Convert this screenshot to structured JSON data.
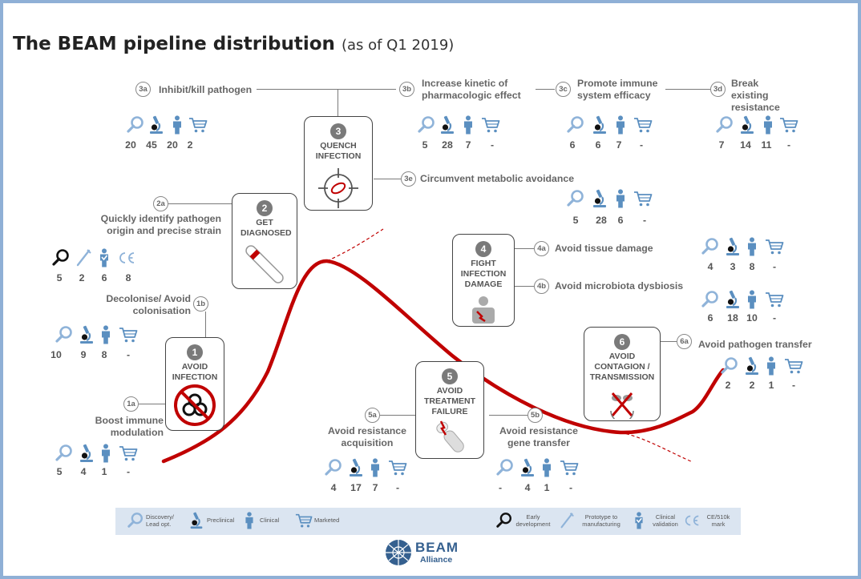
{
  "title": "The BEAM pipeline distribution",
  "subtitle": "(as of Q1 2019)",
  "colors": {
    "icon_blue": "#5b8fc0",
    "curve_red": "#c00000",
    "box_border": "#444444",
    "legend_bg": "#dbe5f1",
    "frame": "#8fb0d6"
  },
  "stages": [
    {
      "num": "1",
      "label": "AVOID INFECTION",
      "picture": "biohazard-prohibited-icon"
    },
    {
      "num": "2",
      "label": "GET DIAGNOSED",
      "picture": "test-tube-icon"
    },
    {
      "num": "3",
      "label": "QUENCH INFECTION",
      "picture": "target-bacterium-icon"
    },
    {
      "num": "4",
      "label": "FIGHT INFECTION DAMAGE",
      "picture": "damaged-patient-icon"
    },
    {
      "num": "5",
      "label": "AVOID TREATMENT FAILURE",
      "picture": "broken-capsule-icon"
    },
    {
      "num": "6",
      "label": "AVOID CONTAGION / TRANSMISSION",
      "picture": "blocked-transmission-icon"
    }
  ],
  "objectives": {
    "1a": {
      "tag": "1a",
      "label": "Boost immune modulation",
      "values": [
        "5",
        "4",
        "1",
        "-"
      ]
    },
    "1b": {
      "tag": "1b",
      "label": "Decolonise/ Avoid colonisation",
      "values": [
        "10",
        "9",
        "8",
        "-"
      ]
    },
    "2a": {
      "tag": "2a",
      "label": "Quickly identify pathogen origin and precise strain",
      "values": [
        "5",
        "2",
        "6",
        "8"
      ]
    },
    "3a": {
      "tag": "3a",
      "label": "Inhibit/kill pathogen",
      "values": [
        "20",
        "45",
        "20",
        "2"
      ]
    },
    "3b": {
      "tag": "3b",
      "label": "Increase kinetic of pharmacologic effect",
      "values": [
        "5",
        "28",
        "7",
        "-"
      ]
    },
    "3c": {
      "tag": "3c",
      "label": "Promote immune system efficacy",
      "values": [
        "6",
        "6",
        "7",
        "-"
      ]
    },
    "3d": {
      "tag": "3d",
      "label": "Break existing resistance",
      "values": [
        "7",
        "14",
        "11",
        "-"
      ]
    },
    "3e": {
      "tag": "3e",
      "label": "Circumvent metabolic avoidance",
      "values": [
        "5",
        "28",
        "6",
        "-"
      ]
    },
    "4a": {
      "tag": "4a",
      "label": "Avoid tissue damage",
      "values": [
        "4",
        "3",
        "8",
        "-"
      ]
    },
    "4b": {
      "tag": "4b",
      "label": "Avoid microbiota dysbiosis",
      "values": [
        "6",
        "18",
        "10",
        "-"
      ]
    },
    "5a": {
      "tag": "5a",
      "label": "Avoid resistance acquisition",
      "values": [
        "4",
        "17",
        "7",
        "-"
      ]
    },
    "5b": {
      "tag": "5b",
      "label": "Avoid resistance gene transfer",
      "values": [
        "-",
        "4",
        "1",
        "-"
      ]
    },
    "6a": {
      "tag": "6a",
      "label": "Avoid pathogen transfer",
      "values": [
        "2",
        "2",
        "1",
        "-"
      ]
    }
  },
  "legend": [
    {
      "icon": "magnifier-icon",
      "label": "Discovery/ Lead opt."
    },
    {
      "icon": "microscope-icon",
      "label": "Preclinical"
    },
    {
      "icon": "person-icon",
      "label": "Clinical"
    },
    {
      "icon": "cart-icon",
      "label": "Marketed"
    },
    {
      "icon": "black-magnifier-icon",
      "label": "Early development"
    },
    {
      "icon": "pipette-icon",
      "label": "Prototype to manufacturing"
    },
    {
      "icon": "clinical-validation-icon",
      "label": "Clinical validation"
    },
    {
      "icon": "ce-mark-icon",
      "label": "CE/510k mark"
    }
  ],
  "logo": {
    "word1": "BEAM",
    "word2": "Alliance"
  }
}
